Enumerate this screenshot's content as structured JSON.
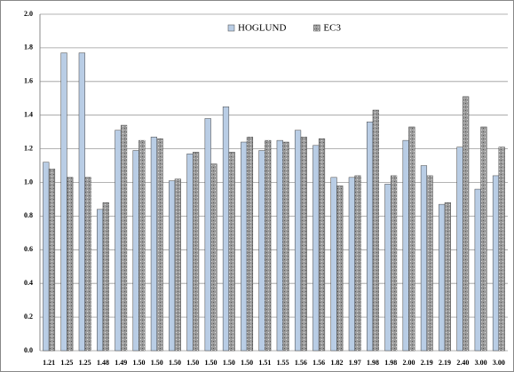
{
  "chart_data": {
    "type": "bar",
    "categories": [
      "1.21",
      "1.25",
      "1.25",
      "1.48",
      "1.49",
      "1.50",
      "1.50",
      "1.50",
      "1.50",
      "1.50",
      "1.50",
      "1.50",
      "1.51",
      "1.55",
      "1.56",
      "1.56",
      "1.82",
      "1.97",
      "1.98",
      "1.98",
      "2.00",
      "2.19",
      "2.19",
      "2.40",
      "3.00",
      "3.00"
    ],
    "series": [
      {
        "name": "HOGLUND",
        "color": "#b9cde5",
        "values": [
          1.12,
          1.77,
          1.77,
          0.84,
          1.31,
          1.19,
          1.27,
          1.01,
          1.17,
          1.38,
          1.45,
          1.24,
          1.19,
          1.25,
          1.31,
          1.22,
          1.03,
          1.03,
          1.36,
          0.99,
          1.25,
          1.1,
          0.87,
          1.21,
          0.96,
          1.04
        ]
      },
      {
        "name": "EC3",
        "color": "#9c9c9c",
        "values": [
          1.08,
          1.03,
          1.03,
          0.88,
          1.34,
          1.25,
          1.26,
          1.02,
          1.18,
          1.11,
          1.18,
          1.27,
          1.25,
          1.24,
          1.27,
          1.26,
          0.98,
          1.04,
          1.43,
          1.04,
          1.33,
          1.04,
          0.88,
          1.51,
          1.33,
          1.21
        ]
      }
    ],
    "ylim": [
      0,
      2
    ],
    "yticks": [
      {
        "value": 0,
        "label": "0.0"
      },
      0.2,
      0.4,
      0.6,
      0.8,
      {
        "value": 1,
        "label": "1.0"
      },
      1.2,
      1.4,
      1.6,
      1.8,
      {
        "value": 2,
        "label": "2.0"
      }
    ],
    "grid": true,
    "legend": "top"
  }
}
